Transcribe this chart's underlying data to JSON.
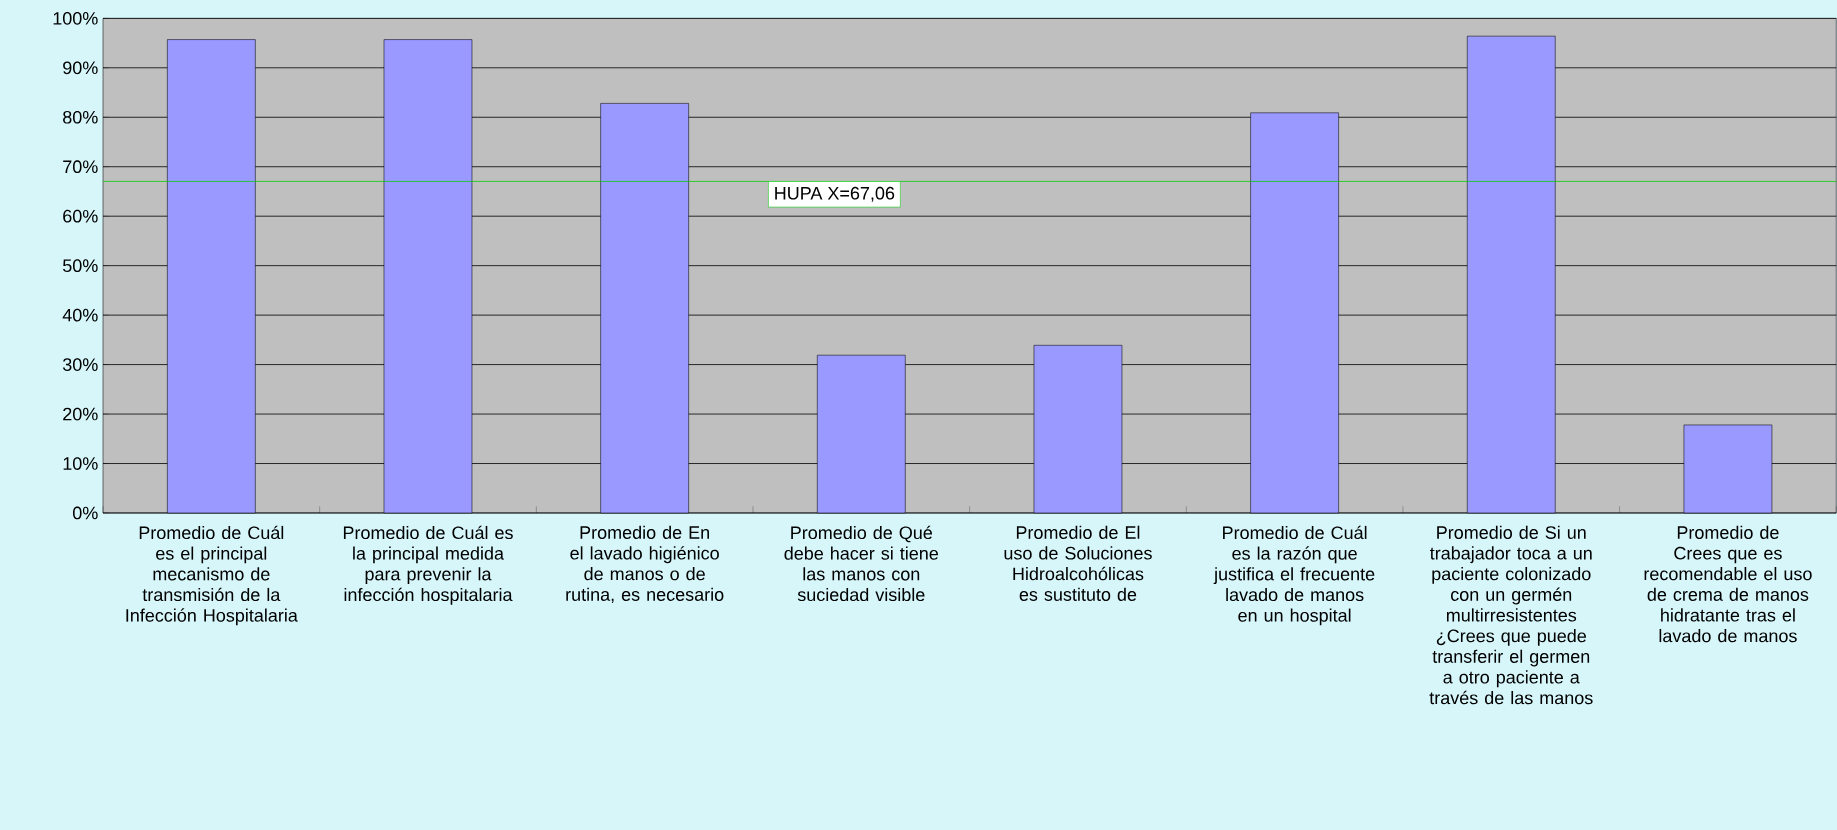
{
  "chart_data": {
    "type": "bar",
    "categories": [
      "Promedio de Cuál es el principal mecanismo de transmisión de la Infección Hospitalaria",
      "Promedio de Cuál es la principal medida para prevenir la infección hospitalaria",
      "Promedio de En el lavado higiénico de manos o de rutina, es necesario",
      "Promedio de Qué debe  hacer si tiene las manos con suciedad visible",
      "Promedio de El uso de Soluciones Hidroalcohólicas es sustituto de",
      "Promedio de Cuál es la razón que justifica el frecuente lavado de manos en un hospital",
      "Promedio de Si un trabajador toca a un paciente colonizado con un germén multirresistentes ¿Crees que puede transferir el germen a otro paciente a través de las manos",
      "Promedio de Crees que es recomendable el uso de crema de manos hidratante tras el lavado de manos"
    ],
    "values": [
      95.7,
      95.7,
      82.8,
      31.9,
      33.9,
      80.9,
      96.4,
      17.8
    ],
    "color": "#9999ff",
    "ylim": [
      0,
      100
    ],
    "yticks": [
      {
        "value": 0,
        "label": "0%"
      },
      {
        "value": 10,
        "label": "10%"
      },
      {
        "value": 20,
        "label": "20%"
      },
      {
        "value": 30,
        "label": "30%"
      },
      {
        "value": 40,
        "label": "40%"
      },
      {
        "value": 50,
        "label": "50%"
      },
      {
        "value": 60,
        "label": "60%"
      },
      {
        "value": 70,
        "label": "70%"
      },
      {
        "value": 80,
        "label": "80%"
      },
      {
        "value": 90,
        "label": "90%"
      },
      {
        "value": 100,
        "label": "100%"
      }
    ],
    "grid": "y",
    "ref_lines": [
      {
        "axis": "y",
        "value": 67.06,
        "label": "HUPA X=67,06",
        "color": "#00cc00"
      }
    ]
  }
}
